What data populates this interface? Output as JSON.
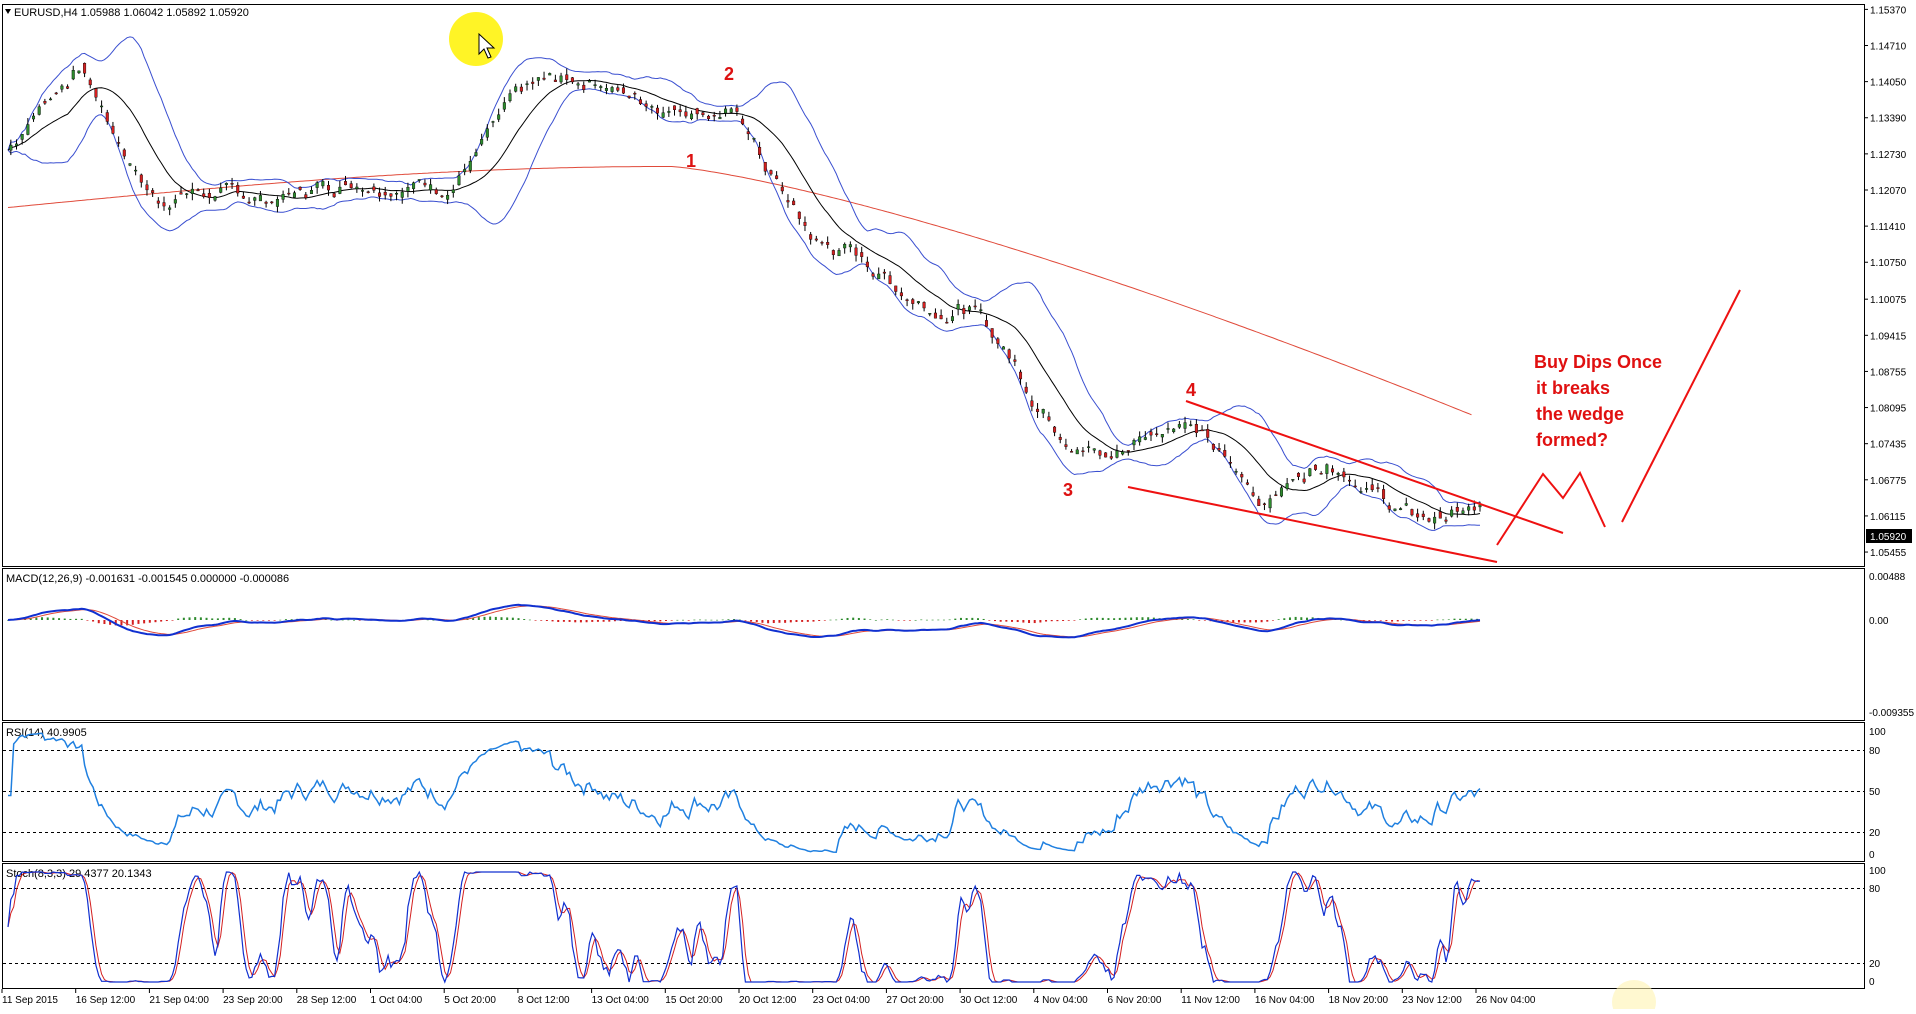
{
  "main_panel": {
    "header": "EURUSD,H4  1.05988 1.06042 1.05892 1.05920",
    "price_ticks": [
      "1.15370",
      "1.14710",
      "1.14050",
      "1.13390",
      "1.12730",
      "1.12070",
      "1.11410",
      "1.10750",
      "1.10075",
      "1.09415",
      "1.08755",
      "1.08095",
      "1.07435",
      "1.06775",
      "1.06115",
      "1.05455"
    ],
    "last_price_label": "1.05920",
    "wave_labels": [
      "1",
      "2",
      "3",
      "4"
    ],
    "annotation_lines": [
      "Buy Dips Once",
      "it breaks",
      "the wedge",
      "formed?"
    ]
  },
  "macd_panel": {
    "header": "MACD(12,26,9) -0.001631 -0.001545 0.000000 -0.000086",
    "ticks": [
      "0.00488",
      "0.00",
      "-0.009355"
    ]
  },
  "rsi_panel": {
    "header": "RSI(14) 40.9905",
    "ticks": [
      "100",
      "80",
      "50",
      "20",
      "0"
    ]
  },
  "stoch_panel": {
    "header": "Stoch(8,3,3) 29.4377 20.1343",
    "ticks": [
      "100",
      "80",
      "20",
      "0"
    ]
  },
  "time_axis": {
    "labels": [
      "11 Sep 2015",
      "16 Sep 12:00",
      "21 Sep 04:00",
      "23 Sep 20:00",
      "28 Sep 12:00",
      "1 Oct 04:00",
      "5 Oct 20:00",
      "8 Oct 12:00",
      "13 Oct 04:00",
      "15 Oct 20:00",
      "20 Oct 12:00",
      "23 Oct 04:00",
      "27 Oct 20:00",
      "30 Oct 12:00",
      "4 Nov 04:00",
      "6 Nov 20:00",
      "11 Nov 12:00",
      "16 Nov 04:00",
      "18 Nov 20:00",
      "23 Nov 12:00",
      "26 Nov 04:00"
    ]
  },
  "chart_data": {
    "type": "line",
    "title": "EURUSD,H4",
    "x": [
      "11 Sep 2015",
      "16 Sep 12:00",
      "21 Sep 04:00",
      "23 Sep 20:00",
      "28 Sep 12:00",
      "1 Oct 04:00",
      "5 Oct 20:00",
      "8 Oct 12:00",
      "13 Oct 04:00",
      "15 Oct 20:00",
      "20 Oct 12:00",
      "23 Oct 04:00",
      "27 Oct 20:00",
      "30 Oct 12:00",
      "4 Nov 04:00",
      "6 Nov 20:00",
      "11 Nov 12:00",
      "16 Nov 04:00",
      "18 Nov 20:00",
      "23 Nov 12:00",
      "26 Nov 04:00"
    ],
    "series": [
      {
        "name": "EURUSD",
        "values": [
          1.128,
          1.143,
          1.12,
          1.118,
          1.122,
          1.121,
          1.124,
          1.136,
          1.143,
          1.135,
          1.134,
          1.11,
          1.104,
          1.1,
          1.081,
          1.073,
          1.078,
          1.066,
          1.07,
          1.063,
          1.06
        ]
      }
    ],
    "ylim": [
      1.052,
      1.1545
    ],
    "last": {
      "open": 1.05988,
      "high": 1.06042,
      "low": 1.05892,
      "close": 1.0592
    },
    "colors": {
      "candle_up": "#2e8b2e",
      "candle_down": "#d42020",
      "bollinger": "#3a4fd0",
      "sma": "#000000",
      "ma_long": "#e04a3a",
      "drawing": "#ee1111"
    },
    "indicators": {
      "MACD": {
        "params": [
          12,
          26,
          9
        ],
        "values": [
          -0.001631,
          -0.001545,
          0.0,
          -8.6e-05
        ],
        "ylim": [
          -0.009355,
          0.00488
        ]
      },
      "RSI": {
        "period": 14,
        "value": 40.9905,
        "levels": [
          80,
          50,
          20
        ],
        "ylim": [
          0,
          100
        ]
      },
      "Stoch": {
        "params": [
          8,
          3,
          3
        ],
        "k": 29.4377,
        "d": 20.1343,
        "levels": [
          80,
          20
        ],
        "ylim": [
          0,
          100
        ]
      }
    },
    "grid": false,
    "legend": "none"
  }
}
